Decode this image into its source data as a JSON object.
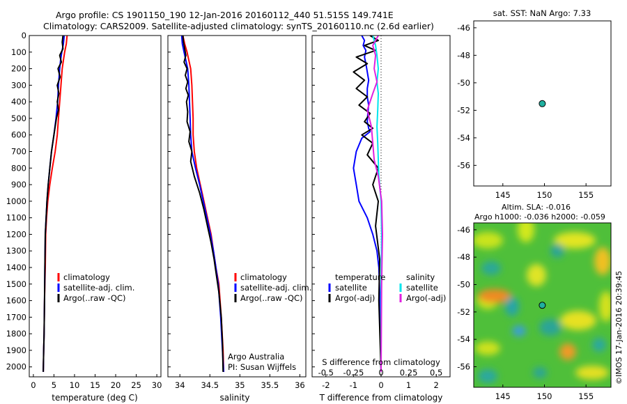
{
  "header": {
    "line1": "Argo profile: CS 1901150_190 12-Jan-2016 20160112_440 51.515S 149.741E",
    "line2": "Climatology: CARS2009. Satellite-adjusted climatology: synTS_20160110.nc (2.6d earlier)"
  },
  "colors": {
    "climatology": "#ff0000",
    "satellite": "#0000ff",
    "argo": "#000000",
    "satellite_s": "#00e5ee",
    "argo_s": "#e020e0",
    "dot": "#20b0a0"
  },
  "chart_data": [
    {
      "type": "line",
      "id": "temperature",
      "xlabel": "temperature (deg C)",
      "xlim": [
        -1,
        31
      ],
      "ylim": [
        2060,
        0
      ],
      "xticks": [
        0,
        5,
        10,
        15,
        20,
        25,
        30
      ],
      "yticks": [
        0,
        100,
        200,
        300,
        400,
        500,
        600,
        700,
        800,
        900,
        1000,
        1100,
        1200,
        1300,
        1400,
        1500,
        1600,
        1700,
        1800,
        1900,
        2000
      ],
      "legend": [
        "climatology",
        "satellite-adj. clim.",
        "Argo(..raw -QC)"
      ],
      "series": [
        {
          "name": "climatology",
          "color": "red",
          "x": [
            8.2,
            8.0,
            7.6,
            7.3,
            7.0,
            6.7,
            6.4,
            6.1,
            5.8,
            5.3,
            4.6,
            4.0,
            3.5,
            3.2,
            3.0,
            2.9,
            2.8,
            2.7,
            2.6,
            2.5,
            2.4
          ],
          "y": [
            0,
            50,
            100,
            150,
            200,
            300,
            400,
            500,
            600,
            700,
            800,
            900,
            1000,
            1100,
            1200,
            1400,
            1500,
            1600,
            1800,
            1900,
            2030
          ]
        },
        {
          "name": "satellite-adj. clim.",
          "color": "blue",
          "x": [
            7.5,
            7.3,
            6.9,
            6.6,
            6.4,
            6.1,
            5.9,
            5.5,
            5.0,
            4.4,
            4.0,
            3.6,
            3.3,
            3.1,
            2.9,
            2.8,
            2.7,
            2.6,
            2.5,
            2.4
          ],
          "y": [
            0,
            50,
            100,
            150,
            200,
            300,
            400,
            500,
            600,
            700,
            800,
            900,
            1000,
            1100,
            1200,
            1400,
            1600,
            1800,
            1900,
            2030
          ]
        },
        {
          "name": "Argo(..raw -QC)",
          "color": "black",
          "x": [
            7.2,
            7.0,
            7.2,
            6.4,
            6.8,
            6.0,
            6.5,
            5.8,
            6.2,
            5.8,
            6.1,
            5.6,
            5.0,
            4.4,
            4.0,
            3.6,
            3.3,
            3.1,
            2.9,
            2.8,
            2.7,
            2.6,
            2.5,
            2.4
          ],
          "y": [
            0,
            40,
            80,
            120,
            160,
            200,
            250,
            300,
            350,
            400,
            450,
            500,
            600,
            700,
            800,
            900,
            1000,
            1100,
            1200,
            1400,
            1600,
            1800,
            1900,
            2030
          ]
        }
      ]
    },
    {
      "type": "line",
      "id": "salinity",
      "xlabel": "salinity",
      "xlim": [
        33.8,
        36.1
      ],
      "ylim": [
        2060,
        0
      ],
      "xticks": [
        34,
        34.5,
        35,
        35.5,
        36
      ],
      "legend": [
        "climatology",
        "satellite-adj. clim.",
        "Argo(..raw -QC)"
      ],
      "annotation": [
        "Argo Australia",
        "PI: Susan Wijffels"
      ],
      "series": [
        {
          "name": "climatology",
          "color": "red",
          "x": [
            34.05,
            34.08,
            34.12,
            34.15,
            34.18,
            34.2,
            34.21,
            34.22,
            34.22,
            34.24,
            34.28,
            34.34,
            34.4,
            34.46,
            34.52,
            34.56,
            34.6,
            34.65,
            34.69,
            34.72,
            34.73
          ],
          "y": [
            0,
            50,
            100,
            150,
            200,
            300,
            400,
            500,
            600,
            700,
            800,
            900,
            1000,
            1100,
            1200,
            1300,
            1400,
            1500,
            1700,
            1900,
            2030
          ]
        },
        {
          "name": "satellite-adj. clim.",
          "color": "blue",
          "x": [
            34.03,
            34.04,
            34.07,
            34.1,
            34.13,
            34.15,
            34.16,
            34.17,
            34.18,
            34.2,
            34.26,
            34.33,
            34.39,
            34.45,
            34.51,
            34.56,
            34.6,
            34.64,
            34.68,
            34.71,
            34.73
          ],
          "y": [
            0,
            50,
            100,
            150,
            200,
            300,
            400,
            500,
            600,
            700,
            800,
            900,
            1000,
            1100,
            1200,
            1300,
            1400,
            1500,
            1700,
            1900,
            2030
          ]
        },
        {
          "name": "Argo(..raw -QC)",
          "color": "black",
          "x": [
            34.05,
            34.06,
            34.08,
            34.1,
            34.07,
            34.12,
            34.09,
            34.13,
            34.1,
            34.14,
            34.11,
            34.13,
            34.12,
            34.17,
            34.15,
            34.2,
            34.18,
            34.24,
            34.33,
            34.4,
            34.46,
            34.52,
            34.57,
            34.61,
            34.65,
            34.69,
            34.71,
            34.72
          ],
          "y": [
            0,
            40,
            80,
            120,
            160,
            200,
            240,
            280,
            320,
            360,
            400,
            460,
            520,
            580,
            640,
            700,
            760,
            850,
            950,
            1050,
            1150,
            1250,
            1350,
            1450,
            1550,
            1700,
            1850,
            2030
          ]
        }
      ]
    },
    {
      "type": "line",
      "id": "difference",
      "xlabel": "T difference from climatology",
      "xlabel_top": "S difference from climatology",
      "xlim": [
        -2.5,
        2.5
      ],
      "ylim": [
        2060,
        0
      ],
      "xticks": [
        -2,
        -1,
        0,
        1,
        2
      ],
      "s_xticks": [
        "-0.5",
        "-0.25",
        "0",
        "0.25",
        "0.5"
      ],
      "legend_left_title": "temperature",
      "legend_right_title": "salinity",
      "legend_left": [
        "satellite",
        "Argo(-adj)"
      ],
      "legend_right": [
        "satellite",
        "Argo(-adj)"
      ],
      "series": [
        {
          "name": "temperature satellite",
          "color": "blue",
          "x": [
            -0.7,
            -0.6,
            -0.65,
            -0.55,
            -0.6,
            -0.55,
            -0.5,
            -0.45,
            -0.5,
            -0.5,
            -0.45,
            -0.48,
            -0.5,
            -0.45,
            -0.4,
            -0.7,
            -0.9,
            -1.0,
            -0.9,
            -0.8,
            -0.5,
            -0.3,
            -0.15,
            -0.08,
            -0.04,
            0
          ],
          "y": [
            0,
            30,
            60,
            90,
            130,
            170,
            220,
            270,
            320,
            370,
            420,
            470,
            520,
            560,
            580,
            620,
            700,
            800,
            900,
            1000,
            1100,
            1200,
            1300,
            1400,
            1600,
            2030
          ]
        },
        {
          "name": "temperature Argo(-adj)",
          "color": "black",
          "x": [
            -0.4,
            -0.1,
            -0.6,
            -0.2,
            -0.9,
            -0.5,
            -1.0,
            -0.6,
            -0.9,
            -0.5,
            -0.8,
            -0.4,
            -0.6,
            -0.3,
            -0.7,
            -0.3,
            -0.5,
            -0.1,
            -0.3,
            -0.1,
            -0.2,
            -0.05,
            -0.08,
            0
          ],
          "y": [
            0,
            30,
            60,
            90,
            130,
            170,
            220,
            270,
            320,
            370,
            420,
            470,
            520,
            560,
            600,
            650,
            720,
            800,
            900,
            1000,
            1150,
            1350,
            1600,
            2030
          ]
        },
        {
          "name": "salinity satellite",
          "color": "cyan",
          "x": [
            -0.3,
            -0.2,
            -0.15,
            -0.1,
            -0.15,
            -0.1,
            -0.12,
            -0.15,
            -0.12,
            -0.1,
            -0.08,
            0.0,
            0.02,
            0.0,
            0.0
          ],
          "y": [
            0,
            60,
            120,
            200,
            280,
            350,
            450,
            550,
            650,
            750,
            850,
            1000,
            1200,
            1500,
            2030
          ]
        },
        {
          "name": "salinity Argo(-adj)",
          "color": "magenta",
          "x": [
            -0.1,
            -0.3,
            -0.2,
            -0.25,
            -0.15,
            -0.3,
            -0.5,
            -0.35,
            -0.3,
            -0.25,
            -0.1,
            0.02,
            0.05,
            0.02,
            0.0
          ],
          "y": [
            0,
            60,
            120,
            200,
            280,
            350,
            450,
            550,
            650,
            750,
            850,
            1000,
            1200,
            1500,
            2030
          ]
        }
      ]
    },
    {
      "type": "scatter",
      "id": "sst_map",
      "title": "sat. SST: NaN Argo: 7.33",
      "xlim": [
        141.5,
        158
      ],
      "ylim": [
        -57.5,
        -45.5
      ],
      "xticks": [
        145,
        150,
        155
      ],
      "yticks": [
        -46,
        -48,
        -50,
        -52,
        -54,
        -56
      ],
      "points": [
        {
          "x": 149.741,
          "y": -51.515
        }
      ]
    },
    {
      "type": "heatmap",
      "id": "sla_map",
      "title_line1": "Altim. SLA: -0.016",
      "title_line2": "Argo h1000: -0.036 h2000: -0.059",
      "xlim": [
        141.5,
        158
      ],
      "ylim": [
        -57.5,
        -45.5
      ],
      "xticks": [
        145,
        150,
        155
      ],
      "yticks": [
        -46,
        -48,
        -50,
        -52,
        -54,
        -56
      ],
      "points": [
        {
          "x": 149.741,
          "y": -51.515
        }
      ]
    }
  ],
  "footer": {
    "credit": "©IMOS 17-Jan-2016 20:39:45"
  }
}
